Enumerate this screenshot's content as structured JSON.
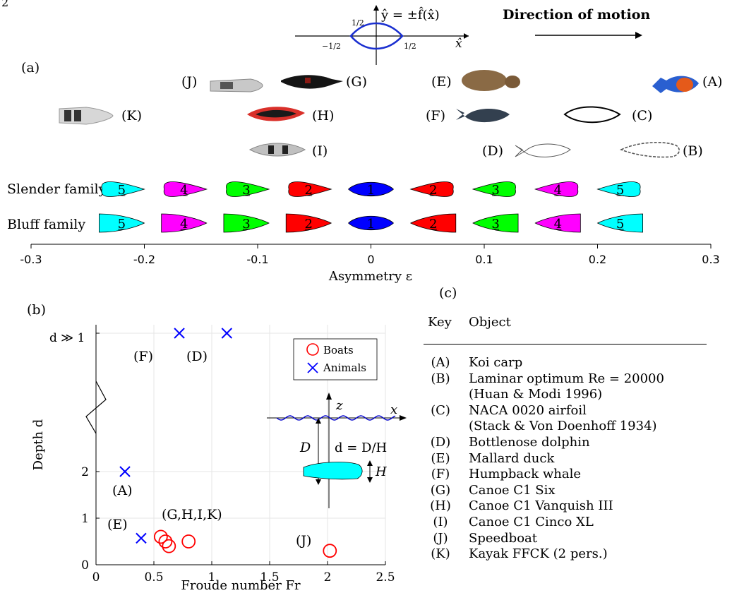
{
  "page_number": "2",
  "top": {
    "shape_equation": "ŷ = ±f̂(x̂)",
    "x_axis_label": "x̂",
    "tick_half_pos": "1/2",
    "tick_half_neg": "−1/2",
    "y_tick_half": "1/2",
    "direction_label": "Direction of motion"
  },
  "panel_a": {
    "label": "(a)",
    "objects": [
      {
        "key": "(J)",
        "color": "#b9b9b9"
      },
      {
        "key": "(G)",
        "color": "#1a1a1a"
      },
      {
        "key": "(E)",
        "color": "#8a6a45"
      },
      {
        "key": "(A)",
        "color": "#2a5fd0"
      },
      {
        "key": "(K)",
        "color": "#cfcfcf"
      },
      {
        "key": "(H)",
        "color": "#d9302a"
      },
      {
        "key": "(F)",
        "color": "#33404f"
      },
      {
        "key": "(C)",
        "color": "#000000"
      },
      {
        "key": "(I)",
        "color": "#bdbdbd"
      },
      {
        "key": "(D)",
        "color": "#666666"
      },
      {
        "key": "(B)",
        "color": "#555555"
      }
    ],
    "families": [
      {
        "name": "Slender family",
        "shapes": [
          {
            "n": "5",
            "eps": -0.22,
            "color": "#00ffff"
          },
          {
            "n": "4",
            "eps": -0.165,
            "color": "#ff00ff"
          },
          {
            "n": "3",
            "eps": -0.11,
            "color": "#00ff00"
          },
          {
            "n": "2",
            "eps": -0.055,
            "color": "#ff0000"
          },
          {
            "n": "1",
            "eps": 0.0,
            "color": "#0000ff"
          },
          {
            "n": "2",
            "eps": 0.055,
            "color": "#ff0000"
          },
          {
            "n": "3",
            "eps": 0.11,
            "color": "#00ff00"
          },
          {
            "n": "4",
            "eps": 0.165,
            "color": "#ff00ff"
          },
          {
            "n": "5",
            "eps": 0.22,
            "color": "#00ffff"
          }
        ]
      },
      {
        "name": "Bluff family",
        "shapes": [
          {
            "n": "5",
            "eps": -0.22,
            "color": "#00ffff"
          },
          {
            "n": "4",
            "eps": -0.165,
            "color": "#ff00ff"
          },
          {
            "n": "3",
            "eps": -0.11,
            "color": "#00ff00"
          },
          {
            "n": "2",
            "eps": -0.055,
            "color": "#ff0000"
          },
          {
            "n": "1",
            "eps": 0.0,
            "color": "#0000ff"
          },
          {
            "n": "2",
            "eps": 0.055,
            "color": "#ff0000"
          },
          {
            "n": "3",
            "eps": 0.11,
            "color": "#00ff00"
          },
          {
            "n": "4",
            "eps": 0.165,
            "color": "#ff00ff"
          },
          {
            "n": "5",
            "eps": 0.22,
            "color": "#00ffff"
          }
        ]
      }
    ],
    "axis": {
      "ticks": [
        -0.3,
        -0.2,
        -0.1,
        0,
        0.1,
        0.2,
        0.3
      ],
      "tick_labels": [
        "-0.3",
        "-0.2",
        "-0.1",
        "0",
        "0.1",
        "0.2",
        "0.3"
      ],
      "xlabel": "Asymmetry ε"
    }
  },
  "panel_b": {
    "label": "(b)",
    "chart_data": {
      "type": "scatter",
      "xlabel": "Froude number Fr",
      "ylabel": "Depth d",
      "xlim": [
        0,
        2.5
      ],
      "ylim": [
        0,
        2.5
      ],
      "x_ticks": [
        "0",
        "0.5",
        "1",
        "1.5",
        "2",
        "2.5"
      ],
      "y_ticks": [
        "0",
        "1",
        "2"
      ],
      "y_top_tick": "d ≫ 1",
      "grid": true,
      "legend_position": "top-right",
      "series": [
        {
          "name": "Boats",
          "marker": "circle",
          "color": "#ff0000",
          "points": [
            {
              "x": 0.56,
              "y": 0.6
            },
            {
              "x": 0.6,
              "y": 0.5
            },
            {
              "x": 0.63,
              "y": 0.4
            },
            {
              "x": 0.8,
              "y": 0.5
            },
            {
              "x": 2.02,
              "y": 0.3
            }
          ]
        },
        {
          "name": "Animals",
          "marker": "x",
          "color": "#0000ff",
          "points": [
            {
              "x": 0.25,
              "y": 2.0
            },
            {
              "x": 0.39,
              "y": 0.57
            },
            {
              "x": 0.72,
              "y": "inf"
            },
            {
              "x": 1.13,
              "y": "inf"
            }
          ]
        }
      ],
      "annotations": [
        "(F)",
        "(D)",
        "(A)",
        "(E)",
        "(G,H,I,K)",
        "(J)"
      ]
    },
    "inset": {
      "z_label": "z",
      "x_label": "x",
      "depth_label": "D",
      "d_equation": "d = D/H",
      "height_label": "H"
    }
  },
  "panel_c": {
    "label": "(c)",
    "header_key": "Key",
    "header_object": "Object",
    "rows": [
      {
        "key": "(A)",
        "object": "Koi carp"
      },
      {
        "key": "(B)",
        "object": "Laminar optimum Re = 20000"
      },
      {
        "key": "",
        "object": "(Huan & Modi 1996)"
      },
      {
        "key": "(C)",
        "object": "NACA 0020 airfoil"
      },
      {
        "key": "",
        "object": "(Stack & Von Doenhoff 1934)"
      },
      {
        "key": "(D)",
        "object": "Bottlenose dolphin"
      },
      {
        "key": "(E)",
        "object": "Mallard duck"
      },
      {
        "key": "(F)",
        "object": "Humpback whale"
      },
      {
        "key": "(G)",
        "object": "Canoe C1 Six"
      },
      {
        "key": "(H)",
        "object": "Canoe C1 Vanquish III"
      },
      {
        "key": "(I)",
        "object": "Canoe C1 Cinco XL"
      },
      {
        "key": "(J)",
        "object": "Speedboat"
      },
      {
        "key": "(K)",
        "object": "Kayak FFCK (2 pers.)"
      }
    ]
  }
}
